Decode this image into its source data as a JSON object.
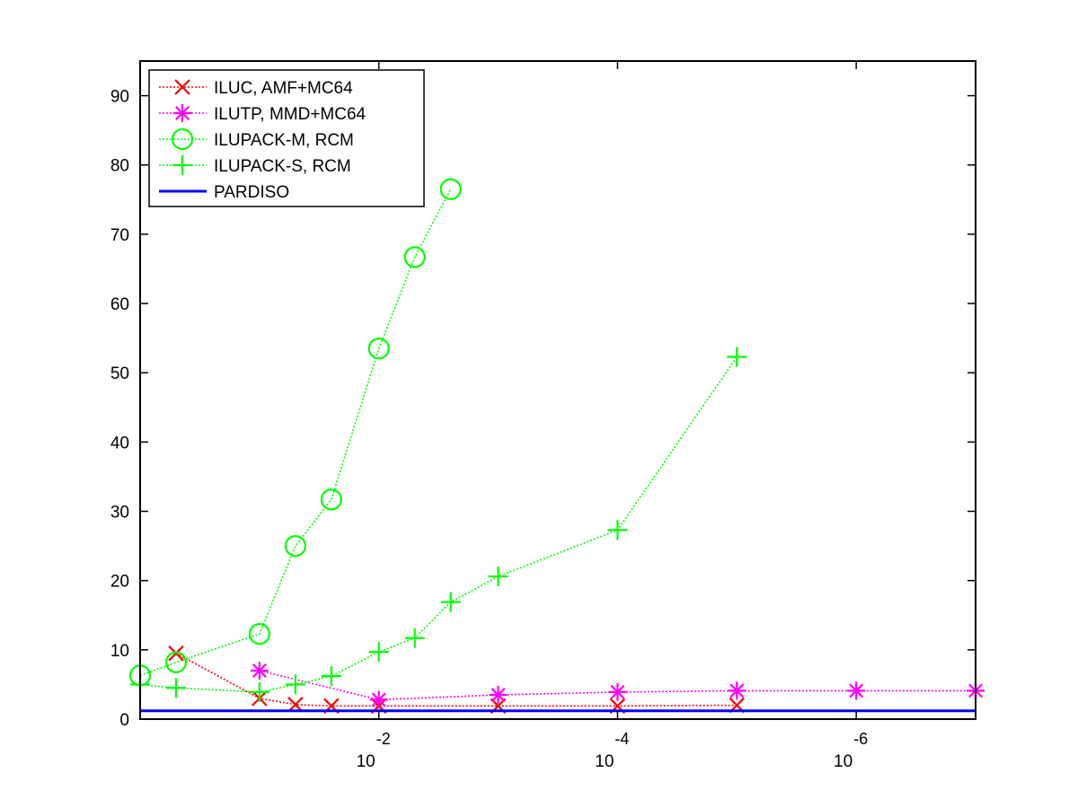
{
  "chart_data": {
    "type": "line",
    "title": "",
    "xlabel": "",
    "ylabel": "",
    "x_scale": "log",
    "x_reversed": true,
    "xlim": [
      1,
      1e-07
    ],
    "ylim": [
      0,
      95
    ],
    "grid": false,
    "legend_position": "top-left",
    "y_ticks": [
      "0",
      "10",
      "20",
      "30",
      "40",
      "50",
      "60",
      "70",
      "80",
      "90"
    ],
    "x_ticks": [
      {
        "base": "10",
        "exponent": "-2",
        "value": 0.01
      },
      {
        "base": "10",
        "exponent": "-4",
        "value": 0.0001
      },
      {
        "base": "10",
        "exponent": "-6",
        "value": 1e-06
      }
    ],
    "series": [
      {
        "name": "ILUC, AMF+MC64",
        "color": "#ff0000",
        "marker": "x",
        "line_style": "dotted",
        "x": [
          0.5,
          0.1,
          0.05,
          0.025,
          0.01,
          0.001,
          0.0001,
          1e-05
        ],
        "y": [
          9.5,
          3.0,
          2.1,
          1.9,
          1.9,
          1.9,
          1.9,
          2.0
        ]
      },
      {
        "name": "ILUTP, MMD+MC64",
        "color": "#ff00ff",
        "marker": "asterisk",
        "line_style": "dotted",
        "x": [
          0.1,
          0.01,
          0.001,
          0.0001,
          1e-05,
          1e-06,
          1e-07
        ],
        "y": [
          7.0,
          2.8,
          3.5,
          3.9,
          4.1,
          4.1,
          4.1
        ]
      },
      {
        "name": "ILUPACK-M, RCM",
        "color": "#00ff00",
        "marker": "circle",
        "line_style": "dotted",
        "x": [
          1,
          0.5,
          0.1,
          0.05,
          0.025,
          0.01,
          0.005,
          0.0025
        ],
        "y": [
          6.3,
          8.2,
          12.3,
          25.0,
          31.7,
          53.5,
          66.7,
          76.5
        ]
      },
      {
        "name": "ILUPACK-S, RCM",
        "color": "#00ff00",
        "marker": "plus",
        "line_style": "dotted",
        "x": [
          1,
          0.5,
          0.1,
          0.05,
          0.025,
          0.01,
          0.005,
          0.0025,
          0.001,
          0.0001,
          1e-05
        ],
        "y": [
          5.0,
          4.5,
          3.9,
          5.0,
          6.2,
          9.7,
          11.7,
          16.9,
          20.6,
          27.3,
          52.3
        ]
      },
      {
        "name": "PARDISO",
        "color": "#0000ff",
        "marker": "none",
        "line_style": "solid",
        "x": [
          1,
          1e-07
        ],
        "y": [
          1.2,
          1.2
        ]
      }
    ]
  }
}
